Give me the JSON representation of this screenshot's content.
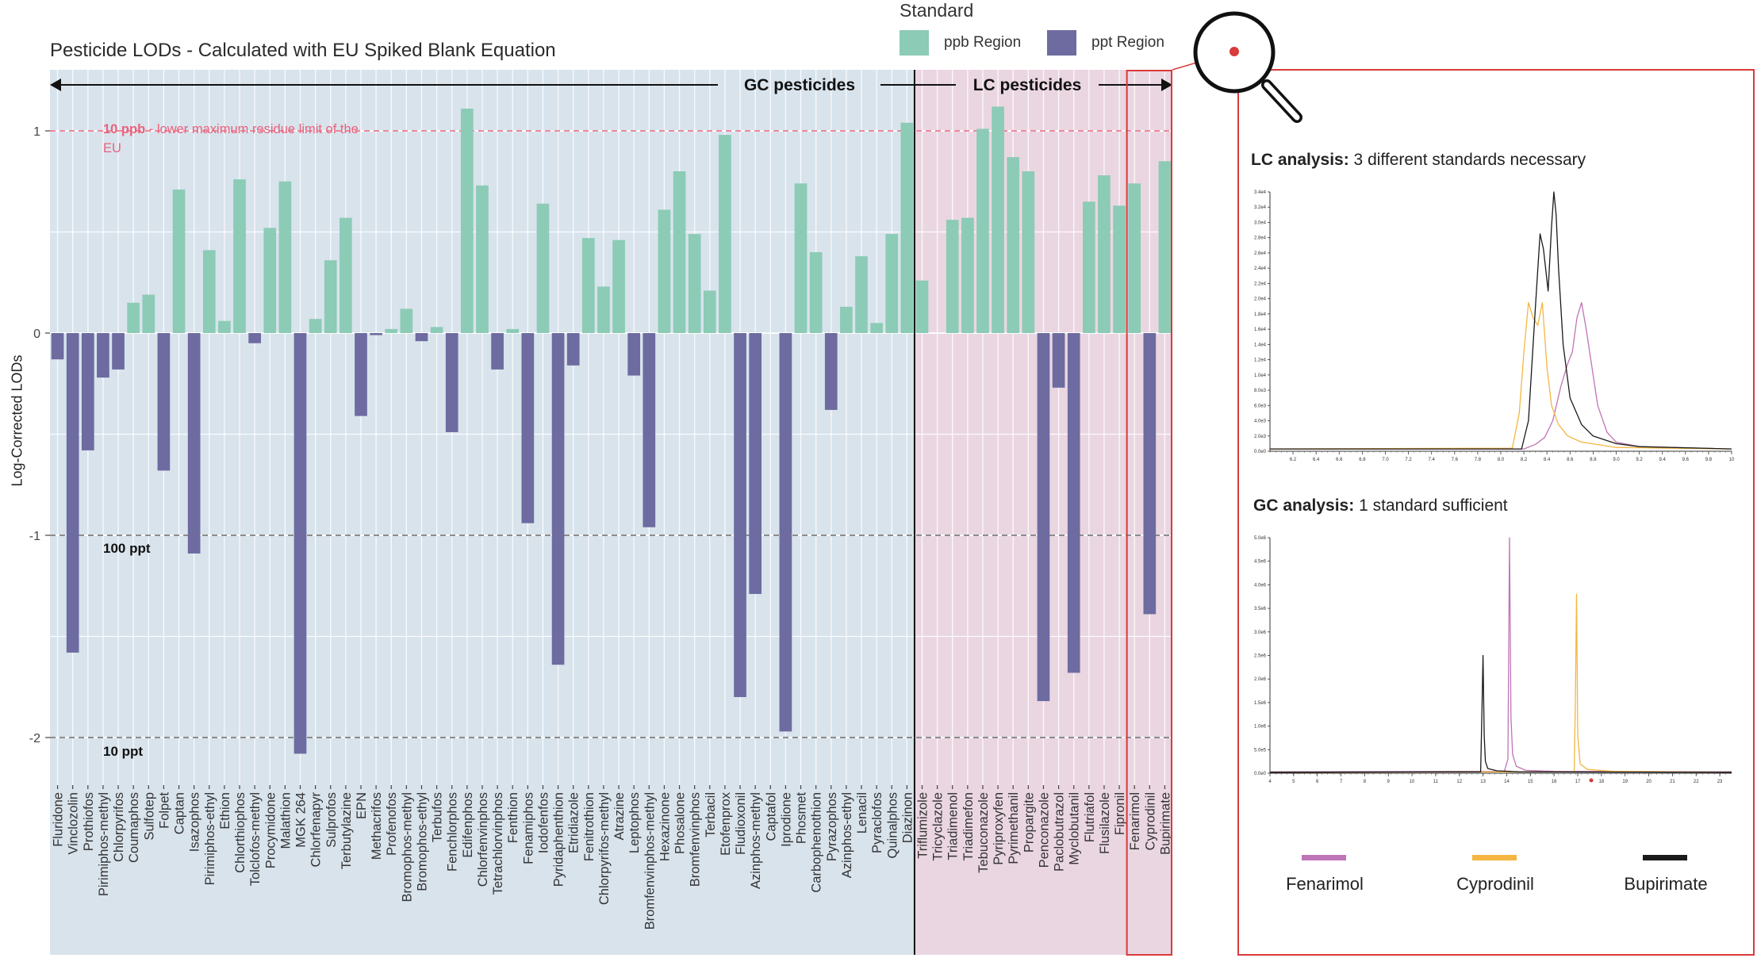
{
  "title": "Pesticide LODs - Calculated with EU Spiked Blank Equation",
  "ylabel": "Log-Corrected LODs",
  "legend": {
    "title": "Standard",
    "items": [
      {
        "label": "ppb Region",
        "color": "#8ccbb6"
      },
      {
        "label": "ppt Region",
        "color": "#6d6ba0"
      }
    ]
  },
  "annotations": {
    "gc": "GC pesticides",
    "lc": "LC pesticides",
    "mrl_bold": "10 ppb",
    "mrl_rest": " - lower maximum residue limit of the",
    "mrl_rest2": "EU",
    "ppt100": "100 ppt",
    "ppt10": "10 ppt"
  },
  "colors": {
    "ppb": "#8ccbb6",
    "ppt": "#6d6ba0",
    "gc_bg": "#d8e3ec",
    "lc_bg": "#ead6e1",
    "red": "#d93a3a",
    "mrl": "#e8637e",
    "fenarimol": "#c074b8",
    "cyprodinil": "#f4b640",
    "bupirimate": "#1a1a1a"
  },
  "chart_data": [
    {
      "type": "bar",
      "title": "Pesticide LODs - Calculated with EU Spiked Blank Equation",
      "xlabel": "",
      "ylabel": "Log-Corrected LODs",
      "ylim": [
        -2.25,
        1.3
      ],
      "yticks": [
        -2,
        -1,
        0,
        1
      ],
      "grid": true,
      "legend_position": "top-right",
      "categories": [
        "Fluridone",
        "Vinclozolin",
        "Prothiofos",
        "Pirimiphos-methyl",
        "Chlorpyrifos",
        "Coumaphos",
        "Sulfotep",
        "Folpet",
        "Captan",
        "Isazophos",
        "Pirimiphos-ethyl",
        "Ethion",
        "Chlorthiophos",
        "Tolclofos-methyl",
        "Procymidone",
        "Malathion",
        "MGK 264",
        "Chlorfenapyr",
        "Sulprofos",
        "Terbutylazine",
        "EPN",
        "Methacrifos",
        "Profenofos",
        "Bromophos-methyl",
        "Bromophos-ethyl",
        "Terbufos",
        "Fenchlorphos",
        "Edifenphos",
        "Chlorfenvinphos",
        "Tetrachlorvinphos",
        "Fenthion",
        "Fenamiphos",
        "Iodofenfos",
        "Pyridaphenthion",
        "Etridiazole",
        "Fenitrothion",
        "Chlorpyrifos-methyl",
        "Atrazine",
        "Leptophos",
        "Bromfenvinphos-methyl",
        "Hexazinone",
        "Phosalone",
        "Bromfenvinphos",
        "Terbacil",
        "Etofenprox",
        "Fludioxonil",
        "Azinphos-methyl",
        "Captafol",
        "Iprodione",
        "Phosmet",
        "Carbophenothion",
        "Pyrazophos",
        "Azinphos-ethyl",
        "Lenacil",
        "Pyraclofos",
        "Quinalphos",
        "Diazinon",
        "Triflumizole",
        "Tricyclazole",
        "Triadimenol",
        "Triadimefon",
        "Tebuconazole",
        "Pyriproxyfen",
        "Pyrimethanil",
        "Propargite",
        "Penconazole",
        "Paclobutrazol",
        "Myclobutanil",
        "Flutriafol",
        "Flusilazole",
        "Fipronil",
        "Fenarimol",
        "Cyprodinil",
        "Bupirimate"
      ],
      "series": [
        {
          "name": "ppb Region",
          "values": [
            0,
            0,
            0,
            0,
            0,
            0.15,
            0.19,
            0,
            0.71,
            0,
            0.41,
            0.06,
            0.76,
            0,
            0.52,
            0.75,
            0,
            0.07,
            0.36,
            0.57,
            0,
            0,
            0.02,
            0.12,
            0,
            0.03,
            0,
            1.11,
            0.73,
            0,
            0.02,
            0,
            0.64,
            0,
            0,
            0.47,
            0.23,
            0.46,
            0,
            0,
            0.61,
            0.8,
            0.49,
            0.21,
            0.98,
            0,
            0,
            0,
            0,
            0.74,
            0.4,
            0,
            0.13,
            0.38,
            0.05,
            0.49,
            1.04,
            0.26,
            0,
            0.56,
            0.57,
            1.01,
            1.12,
            0.87,
            0.8,
            0,
            0,
            0,
            0.65,
            0.78,
            0.63,
            0.74,
            0,
            0.85
          ]
        },
        {
          "name": "ppt Region",
          "values": [
            -0.13,
            -1.58,
            -0.58,
            -0.22,
            -0.18,
            0,
            0,
            -0.68,
            0,
            -1.09,
            0,
            0,
            0,
            -0.05,
            0,
            0,
            -2.08,
            0,
            0,
            0,
            -0.41,
            -0.01,
            0,
            0,
            -0.04,
            0,
            -0.49,
            0,
            0,
            -0.18,
            0,
            -0.94,
            0,
            -1.64,
            -0.16,
            0,
            0,
            0,
            -0.21,
            -0.96,
            0,
            0,
            0,
            0,
            0,
            -1.8,
            -1.29,
            0,
            -1.97,
            0,
            0,
            -0.38,
            0,
            0,
            0,
            0,
            0,
            0,
            0,
            0,
            0,
            0,
            0,
            0,
            0,
            -1.82,
            -0.27,
            -1.68,
            0,
            0,
            0,
            0,
            -1.39,
            0
          ]
        }
      ],
      "reference_lines": [
        1,
        -1,
        -2
      ],
      "group_labels": [
        "GC pesticides",
        "LC pesticides"
      ]
    },
    {
      "type": "line",
      "title": "LC analysis: 3 different standards necessary",
      "xticks": [
        "6.2",
        "6.4",
        "6.6",
        "6.8",
        "7.0",
        "7.2",
        "7.4",
        "7.6",
        "7.8",
        "8.0",
        "8.2",
        "8.4",
        "8.6",
        "8.8",
        "9.0",
        "9.2",
        "9.4",
        "9.6",
        "9.8",
        "10"
      ],
      "yticks": [
        "0.0e0",
        "2.0e3",
        "4.0e3",
        "6.0e3",
        "8.0e3",
        "1.0e4",
        "1.2e4",
        "1.4e4",
        "1.6e4",
        "1.8e4",
        "2.0e4",
        "2.2e4",
        "2.4e4",
        "2.6e4",
        "2.8e4",
        "3.0e4",
        "3.2e4",
        "3.4e4"
      ],
      "xlim": [
        6.0,
        10.0
      ],
      "ylim": [
        0,
        34000
      ],
      "series": [
        {
          "name": "Fenarimol",
          "x": [
            6.0,
            8.2,
            8.3,
            8.38,
            8.45,
            8.52,
            8.58,
            8.62,
            8.66,
            8.7,
            8.74,
            8.78,
            8.84,
            8.92,
            9.0,
            9.2,
            10.0
          ],
          "y": [
            300,
            300,
            900,
            1800,
            4000,
            8500,
            11500,
            13000,
            17500,
            19500,
            16000,
            12000,
            6000,
            2500,
            1200,
            600,
            300
          ]
        },
        {
          "name": "Cyprodinil",
          "x": [
            6.0,
            8.1,
            8.16,
            8.2,
            8.24,
            8.28,
            8.32,
            8.36,
            8.4,
            8.44,
            8.5,
            8.58,
            8.7,
            9.0,
            10.0
          ],
          "y": [
            300,
            400,
            5000,
            13000,
            19500,
            17500,
            16500,
            19500,
            11000,
            6000,
            3500,
            2000,
            1200,
            500,
            300
          ]
        },
        {
          "name": "Bupirimate",
          "x": [
            6.0,
            8.18,
            8.24,
            8.3,
            8.34,
            8.37,
            8.41,
            8.44,
            8.46,
            8.48,
            8.5,
            8.54,
            8.6,
            8.7,
            8.8,
            9.0,
            9.2,
            10.0
          ],
          "y": [
            300,
            300,
            4000,
            19000,
            28500,
            26500,
            21000,
            29500,
            34000,
            31000,
            24000,
            14000,
            7000,
            3500,
            2000,
            1000,
            600,
            300
          ]
        }
      ]
    },
    {
      "type": "line",
      "title": "GC analysis: 1 standard sufficient",
      "xticks": [
        "4",
        "5",
        "6",
        "7",
        "8",
        "9",
        "10",
        "11",
        "12",
        "13",
        "14",
        "15",
        "16",
        "17",
        "18",
        "19",
        "20",
        "21",
        "22",
        "23"
      ],
      "yticks": [
        "0.0e0",
        "5.0e5",
        "1.0e6",
        "1.5e6",
        "2.0e6",
        "2.5e6",
        "3.0e6",
        "3.5e6",
        "4.0e6",
        "4.5e6",
        "5.0e6"
      ],
      "xlim": [
        4,
        23.5
      ],
      "ylim": [
        0,
        5000000
      ],
      "series": [
        {
          "name": "Fenarimol",
          "x": [
            4,
            13.9,
            14.05,
            14.12,
            14.18,
            14.25,
            14.4,
            14.8,
            16,
            23.5
          ],
          "y": [
            30000,
            40000,
            300000,
            5000000,
            1200000,
            400000,
            150000,
            60000,
            40000,
            30000
          ]
        },
        {
          "name": "Cyprodinil",
          "x": [
            4,
            16.85,
            16.9,
            16.95,
            17.0,
            17.1,
            17.4,
            18.5,
            23.5
          ],
          "y": [
            20000,
            30000,
            1500000,
            3800000,
            800000,
            200000,
            80000,
            40000,
            20000
          ]
        },
        {
          "name": "Bupirimate",
          "x": [
            4,
            12.9,
            12.95,
            13.0,
            13.05,
            13.1,
            13.2,
            13.6,
            14.5,
            23.5
          ],
          "y": [
            20000,
            30000,
            1200000,
            2500000,
            800000,
            250000,
            100000,
            50000,
            30000,
            20000
          ]
        }
      ]
    }
  ],
  "panel": {
    "lc_title_bold": "LC analysis:",
    "lc_title_rest": " 3 different standards necessary",
    "gc_title_bold": "GC analysis:",
    "gc_title_rest": " 1 standard sufficient",
    "compounds": [
      "Fenarimol",
      "Cyprodinil",
      "Bupirimate"
    ],
    "icon": "magnifier-icon"
  }
}
